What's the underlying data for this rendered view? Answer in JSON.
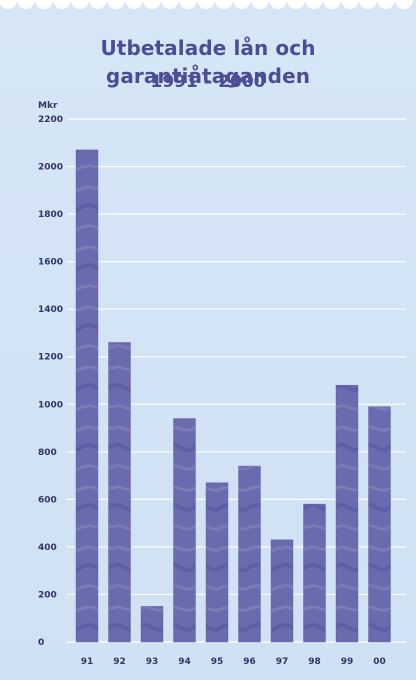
{
  "chart_data": {
    "type": "bar",
    "title": "Utbetalade lån och garantiåtaganden",
    "subtitle": "1991 – 2000",
    "ylabel": "Mkr",
    "xlabel": "",
    "categories": [
      "91",
      "92",
      "93",
      "94",
      "95",
      "96",
      "97",
      "98",
      "99",
      "00"
    ],
    "values": [
      2070,
      1260,
      150,
      940,
      670,
      740,
      430,
      580,
      1080,
      990
    ],
    "ylim": [
      0,
      2200
    ],
    "yticks": [
      0,
      200,
      400,
      600,
      800,
      1000,
      1200,
      1400,
      1600,
      1800,
      2000,
      2200
    ],
    "grid": true,
    "colors": {
      "background": "#d6e6f7",
      "bar": "#6a6aae",
      "text": "#4d4d94",
      "tick_text": "#333366",
      "grid": "#ffffff"
    }
  }
}
